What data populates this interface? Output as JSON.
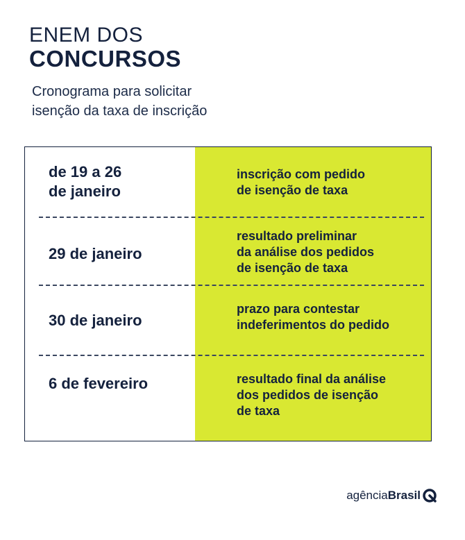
{
  "header": {
    "title_line1": "ENEM DOS",
    "title_line2": "CONCURSOS",
    "subtitle_line1": "Cronograma para solicitar",
    "subtitle_line2": "isenção da taxa de inscrição"
  },
  "schedule": [
    {
      "date_lines": [
        "de 19 a 26",
        "de janeiro"
      ],
      "desc_lines": [
        "inscrição com pedido",
        "de isenção de taxa"
      ]
    },
    {
      "date_lines": [
        "29 de janeiro"
      ],
      "desc_lines": [
        "resultado preliminar",
        "da análise dos pedidos",
        "de isenção de taxa"
      ]
    },
    {
      "date_lines": [
        "30 de janeiro"
      ],
      "desc_lines": [
        "prazo para contestar",
        "indeferimentos do pedido"
      ]
    },
    {
      "date_lines": [
        "6 de fevereiro"
      ],
      "desc_lines": [
        "resultado final da análise",
        "dos pedidos de isenção",
        "de taxa"
      ]
    }
  ],
  "logo": {
    "light": "agência",
    "bold": "Brasil"
  },
  "colors": {
    "navy": "#14213d",
    "accent_green": "#d9e832"
  }
}
